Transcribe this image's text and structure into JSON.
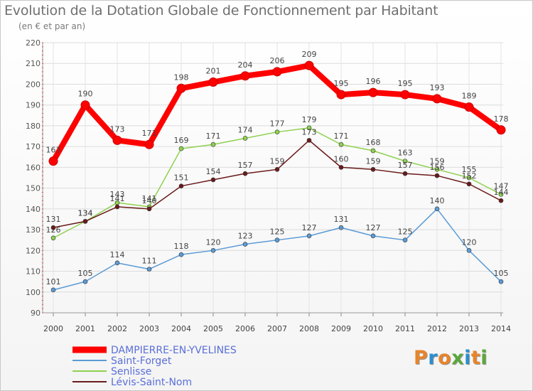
{
  "chart_data": {
    "type": "line",
    "title": "Evolution de la Dotation Globale de Fonctionnement par Habitant",
    "subtitle": "(en € et par an)",
    "x": [
      "2000",
      "2001",
      "2002",
      "2003",
      "2004",
      "2005",
      "2006",
      "2007",
      "2008",
      "2009",
      "2010",
      "2011",
      "2012",
      "2013",
      "2014"
    ],
    "ylim": [
      90,
      220
    ],
    "yticks": [
      90,
      100,
      110,
      120,
      130,
      140,
      150,
      160,
      170,
      180,
      190,
      200,
      210,
      220
    ],
    "grid": true,
    "legend_position": "bottom-left",
    "series": [
      {
        "name": "DAMPIERRE-EN-YVELINES",
        "color": "#ff0000",
        "values": [
          163,
          190,
          173,
          171,
          198,
          201,
          204,
          206,
          209,
          195,
          196,
          195,
          193,
          189,
          178
        ]
      },
      {
        "name": "Saint-Forget",
        "color": "#5b9bd5",
        "values": [
          101,
          105,
          114,
          111,
          118,
          120,
          123,
          125,
          127,
          131,
          127,
          125,
          140,
          120,
          105
        ]
      },
      {
        "name": "Senlisse",
        "color": "#8fd14f",
        "values": [
          126,
          134,
          143,
          141,
          169,
          171,
          174,
          177,
          179,
          171,
          168,
          163,
          159,
          155,
          147
        ]
      },
      {
        "name": "Lévis-Saint-Nom",
        "color": "#6b1a1a",
        "values": [
          131,
          134,
          141,
          140,
          151,
          154,
          157,
          159,
          173,
          160,
          159,
          157,
          156,
          152,
          144
        ]
      }
    ]
  },
  "logo": {
    "text": "Proxiti",
    "colors": [
      "#e8842a",
      "#2a8fd0",
      "#e8842a",
      "#5aa83a",
      "#2a8fd0",
      "#e8842a",
      "#5aa83a"
    ]
  }
}
